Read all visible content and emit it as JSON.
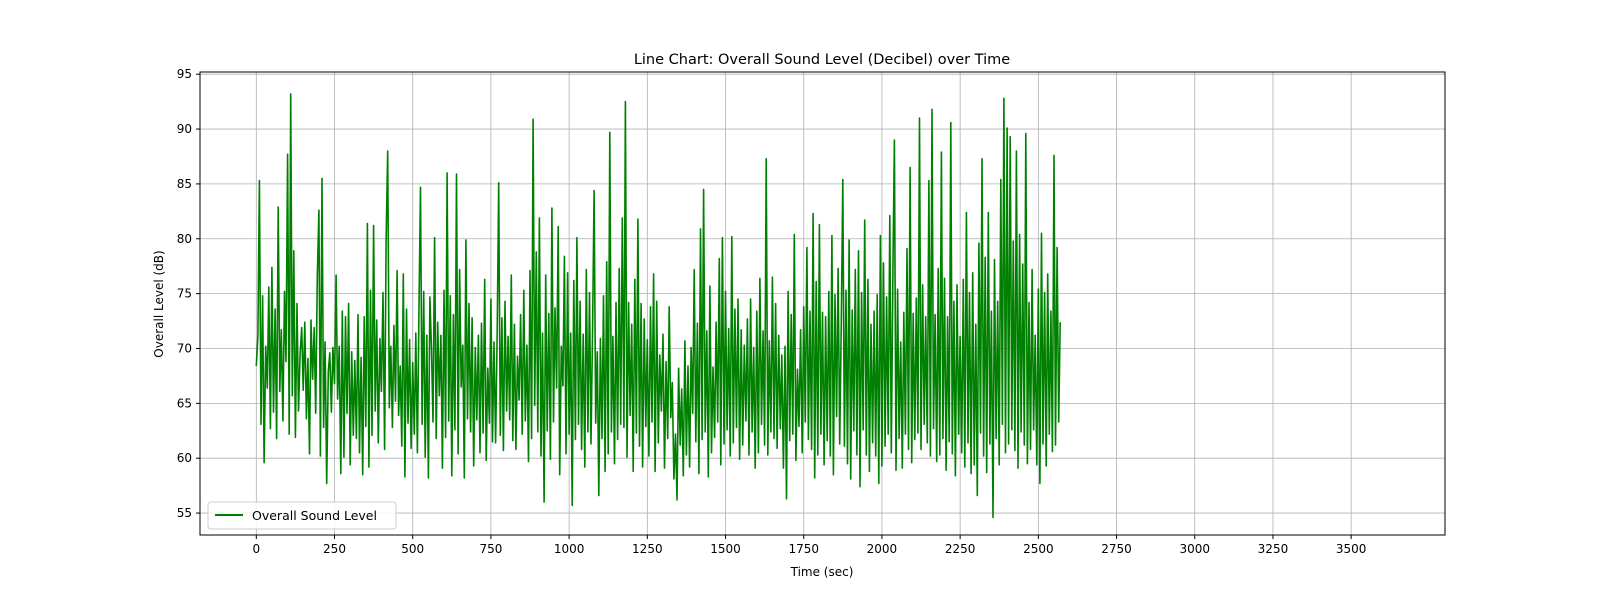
{
  "chart_data": {
    "type": "line",
    "title": "Line Chart: Overall Sound Level (Decibel) over Time",
    "xlabel": "Time (sec)",
    "ylabel": "Overall Level (dB)",
    "xlim": [
      -180,
      3800
    ],
    "ylim": [
      53,
      95.2
    ],
    "xticks": [
      0,
      250,
      500,
      750,
      1000,
      1250,
      1500,
      1750,
      2000,
      2250,
      2500,
      2750,
      3000,
      3250,
      3500
    ],
    "yticks": [
      55,
      60,
      65,
      70,
      75,
      80,
      85,
      90,
      95
    ],
    "grid": true,
    "legend_position": "lower-left",
    "series": [
      {
        "name": "Overall Sound Level",
        "color": "#008000",
        "x_start": 0,
        "x_step": 5,
        "values": [
          68.4,
          71.2,
          85.3,
          63.1,
          74.8,
          59.6,
          70.2,
          66.4,
          75.6,
          62.7,
          77.4,
          64.2,
          73.6,
          61.8,
          82.9,
          66.1,
          71.7,
          63.4,
          75.2,
          68.8,
          87.7,
          62.2,
          93.2,
          65.7,
          78.9,
          61.9,
          74.1,
          64.3,
          69.5,
          71.9,
          66.2,
          72.4,
          63.6,
          69.1,
          60.4,
          72.6,
          67.2,
          71.9,
          64.1,
          76.5,
          82.6,
          60.2,
          85.5,
          62.8,
          70.6,
          57.7,
          67.9,
          69.6,
          64.2,
          70.1,
          66.8,
          76.7,
          65.4,
          70.2,
          58.6,
          73.4,
          60.1,
          72.9,
          64.1,
          74.1,
          59.4,
          69.7,
          62.1,
          68.9,
          61.8,
          73.1,
          60.5,
          69.2,
          58.5,
          72.9,
          62.9,
          81.4,
          59.2,
          75.3,
          62.1,
          81.2,
          64.3,
          72.6,
          61.4,
          70.9,
          66.1,
          75.1,
          60.8,
          79.9,
          88.0,
          64.6,
          70.2,
          62.8,
          72.1,
          65.2,
          77.1,
          63.9,
          68.4,
          61.1,
          76.8,
          58.3,
          73.6,
          63.2,
          70.8,
          60.9,
          68.7,
          62.2,
          71.4,
          60.5,
          73.8,
          84.7,
          63.1,
          75.2,
          60.1,
          71.2,
          58.2,
          74.7,
          69.9,
          63.3,
          80.1,
          61.8,
          72.4,
          65.7,
          71.2,
          59.1,
          75.3,
          61.9,
          86.0,
          63.4,
          74.8,
          58.4,
          73.1,
          62.6,
          85.9,
          60.4,
          77.2,
          66.5,
          70.3,
          58.2,
          79.9,
          63.6,
          74.1,
          62.4,
          72.8,
          59.3,
          70.1,
          63.5,
          71.2,
          60.5,
          72.3,
          62.3,
          76.3,
          59.8,
          68.2,
          63.2,
          74.5,
          61.5,
          70.6,
          61.4,
          71.5,
          85.1,
          62.1,
          72.8,
          60.7,
          74.3,
          64.3,
          71.1,
          63.5,
          76.7,
          61.6,
          72.2,
          60.8,
          69.3,
          65.3,
          73.1,
          62.2,
          75.3,
          63.4,
          70.3,
          59.7,
          77.1,
          61.8,
          90.9,
          64.8,
          78.8,
          62.4,
          81.9,
          60.2,
          71.4,
          56.0,
          76.7,
          62.5,
          73.2,
          59.9,
          82.8,
          63.3,
          73.7,
          66.4,
          81.1,
          58.5,
          70.2,
          66.6,
          78.4,
          60.4,
          76.9,
          62.2,
          71.4,
          55.7,
          76.2,
          61.7,
          80.1,
          63.1,
          74.3,
          60.8,
          71.3,
          59.2,
          77.2,
          62.4,
          75.1,
          61.3,
          71.9,
          84.4,
          63.2,
          69.7,
          56.6,
          70.9,
          61.8,
          74.8,
          58.8,
          77.9,
          60.4,
          89.7,
          62.4,
          71.1,
          59.5,
          74.2,
          61.7,
          77.3,
          63.1,
          81.9,
          62.8,
          92.5,
          60.1,
          74.2,
          63.9,
          72.2,
          58.8,
          76.3,
          62.3,
          81.8,
          61.1,
          74.1,
          59.2,
          72.7,
          62.9,
          70.8,
          60.2,
          73.8,
          63.3,
          76.8,
          58.8,
          74.3,
          61.4,
          69.4,
          64.3,
          71.3,
          59.1,
          68.8,
          61.8,
          73.8,
          63.7,
          66.9,
          58.1,
          62.2,
          56.2,
          68.2,
          61.2,
          66.3,
          58.4,
          70.7,
          60.3,
          68.4,
          59.2,
          70.1,
          64.1,
          77.2,
          61.5,
          72.3,
          58.6,
          80.9,
          61.7,
          84.5,
          62.4,
          71.6,
          58.3,
          75.7,
          60.5,
          68.3,
          61.9,
          72.4,
          63.3,
          78.2,
          59.4,
          80.1,
          61.3,
          75.2,
          62.6,
          71.8,
          60.2,
          80.2,
          61.4,
          73.6,
          62.8,
          74.5,
          59.9,
          71.7,
          61.2,
          70.3,
          63.4,
          72.7,
          60.3,
          74.5,
          62.4,
          70.1,
          59.1,
          73.4,
          60.5,
          76.4,
          63.1,
          71.6,
          61.2,
          87.3,
          60.3,
          70.7,
          62.4,
          76.5,
          61.8,
          74.1,
          60.9,
          71.2,
          62.7,
          69.4,
          59.1,
          70.2,
          56.3,
          75.2,
          61.6,
          73.1,
          62.2,
          80.4,
          59.8,
          68.1,
          62.9,
          71.7,
          60.5,
          73.8,
          63.3,
          79.2,
          61.7,
          73.4,
          60.8,
          82.3,
          58.2,
          76.1,
          60.3,
          81.3,
          62.2,
          73.3,
          59.4,
          72.9,
          61.6,
          75.2,
          60.2,
          80.3,
          58.5,
          74.9,
          63.8,
          77.3,
          61.3,
          72.4,
          85.4,
          61.1,
          75.3,
          59.5,
          79.9,
          58.1,
          73.5,
          62.5,
          77.2,
          60.3,
          78.9,
          57.4,
          75.1,
          62.6,
          81.7,
          60.3,
          76.3,
          58.8,
          72.2,
          61.4,
          73.4,
          60.2,
          74.9,
          57.7,
          80.3,
          59.3,
          77.8,
          61.1,
          74.7,
          62.2,
          82.1,
          60.5,
          76.9,
          89.0,
          58.9,
          75.4,
          61.8,
          70.6,
          59.1,
          73.3,
          62.2,
          79.1,
          60.8,
          86.5,
          59.6,
          73.2,
          61.7,
          74.6,
          62.3,
          91.0,
          60.8,
          75.8,
          63.1,
          72.9,
          61.4,
          85.3,
          60.2,
          91.8,
          62.7,
          73.1,
          59.7,
          77.3,
          60.3,
          87.9,
          61.8,
          76.4,
          58.9,
          72.9,
          61.5,
          90.6,
          60.4,
          74.3,
          58.4,
          75.8,
          62.2,
          71.1,
          60.5,
          76.3,
          59.2,
          82.4,
          61.4,
          75.1,
          58.6,
          76.9,
          59.4,
          72.2,
          56.6,
          79.6,
          62.3,
          87.3,
          60.2,
          78.3,
          58.7,
          82.4,
          61.3,
          73.4,
          54.6,
          78.1,
          61.8,
          74.3,
          59.4,
          85.4,
          63.1,
          92.8,
          60.5,
          90.1,
          61.3,
          89.3,
          62.6,
          79.8,
          60.7,
          88.0,
          59.1,
          80.4,
          62.4,
          77.7,
          61.2,
          89.6,
          59.5,
          74.2,
          60.8,
          77.2,
          62.6,
          71.2,
          59.4,
          75.4,
          57.7,
          80.5,
          61.3,
          75.1,
          59.3,
          76.8,
          62.2,
          73.4,
          60.6,
          87.6,
          61.2,
          79.2,
          63.3,
          72.4
        ]
      }
    ]
  }
}
